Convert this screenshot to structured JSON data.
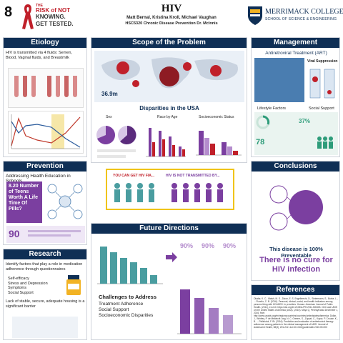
{
  "poster": {
    "number": "8",
    "title": "HIV",
    "authors": "Matt Bernal, Kristina Kroll, Michael Vaughan",
    "course": "HSC5320 Chronic Disease Prevention Dr. McInnis",
    "logo_left": {
      "line1": "THE",
      "line2": "RISK of NOT",
      "line3": "KNOWING.",
      "line4": "GET TESTED."
    },
    "logo_right": {
      "line1": "MERRIMACK COLLEGE",
      "line2": "SCHOOL OF SCIENCE & ENGINEERING"
    }
  },
  "etiology": {
    "header": "Etiology",
    "text": "HIV is transmitted via 4 fluids: Semen, Blood, Vaginal fluids, and Breastmilk"
  },
  "scope": {
    "header": "Scope of the Problem",
    "disparities_title": "Disparities in the USA",
    "sex_label": "Sex",
    "race_label": "Race by Age",
    "ses_label": "Socioeconomic Status",
    "stat": "36.9m",
    "colors": {
      "accent": "#c0392b",
      "purple": "#7b3fa0",
      "blue": "#2b5b9c"
    }
  },
  "management": {
    "header": "Management",
    "art_title": "Antiretroviral Treatment (ART)",
    "viral_title": "Viral Suppression",
    "lifestyle_title": "Lifestyle Factors",
    "social_title": "Social Support",
    "pct1": "37%",
    "pct2": "78"
  },
  "prevention": {
    "header": "Prevention",
    "subtitle": "Addressing Health Education in Schools",
    "callout": "8.20 Number of Teens Worth A Life Time Of Pills?",
    "stat": "90"
  },
  "middle_banner": {
    "left": "YOU CAN GET HIV FIA...",
    "right": "HIV IS NOT TRANSMITTED BY..."
  },
  "conclusions": {
    "header": "Conclusions",
    "statement1": "This disease is 100% Preventable",
    "statement2": "There is no cure for HIV infection"
  },
  "research": {
    "header": "Research",
    "intro": "Identify factors that play a role in medication adherence through questionnaires",
    "bullets": [
      "Self-efficacy",
      "Stress and Depression",
      "Symptoms",
      "Social Support"
    ],
    "closing": "Lack of stable, secure, adequate housing is a significant barrier"
  },
  "future": {
    "header": "Future Directions",
    "challenges_title": "Challenges to Address",
    "challenges": [
      "Treatment Adherence",
      "Social Support",
      "Socioeconomic Disparities"
    ],
    "pcts": [
      "90%",
      "90%",
      "90%"
    ]
  },
  "references": {
    "header": "References",
    "text": "Okafor, K. C., Walsh, M. S., Dizon, E. S. Engelbrecht, D., Sintermann, S., Burke, L., ... Fiorello, C. B. (2016). Personal, clinical, social, and health indicators among persons living with HIV/AIDS. In providers. Human: American Journal of Public Health. (2011), e1-e10. https://doi.org/10.2105/AJPH.2011.300403. CDC and UNIS on the United States of America (USA). (2015). Mays Q, Pennsylvania December 1, 2016, from http://www.unaids.org/en/regionscountries/countries/unitedstatesofamerica; Dollar, J., Winfrey, P. de Meldecrit Jorg, N. C. Greene, S., Zuppel, C., Kapur, P. Crouse, K., B. ... Pellinkhof, F. Bt. (2016). Prediction and evaluation of antiretroviral therapy adherence among patients in the clinical management of AIDS. Journal of Adolescent Health, 58(3), 201-212. doi:10.1016/j.jadohealth.2015.05.003"
  }
}
